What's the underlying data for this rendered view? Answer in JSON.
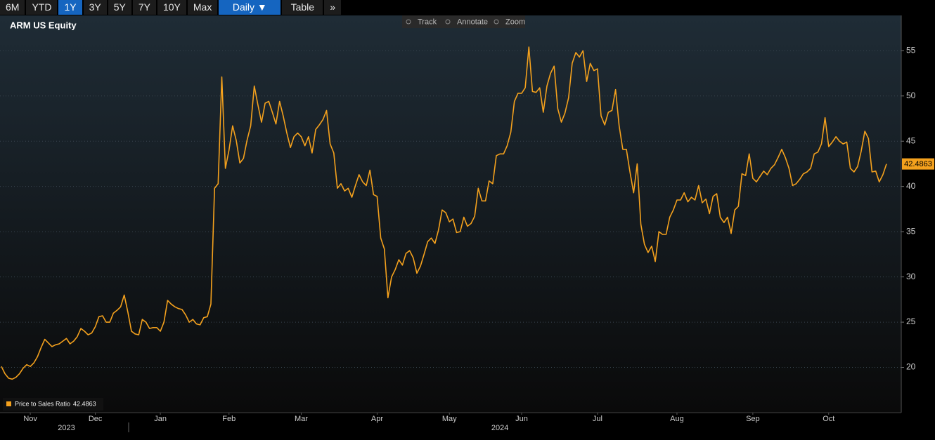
{
  "toolbar": {
    "ranges": [
      "6M",
      "YTD",
      "1Y",
      "3Y",
      "5Y",
      "7Y",
      "10Y",
      "Max"
    ],
    "selected_range": 2,
    "frequency": "Daily ▼",
    "table": "Table",
    "more": "»"
  },
  "chart_tools": [
    "Track",
    "Annotate",
    "Zoom"
  ],
  "chart_data": {
    "type": "line",
    "title": "ARM US Equity",
    "categories": [
      null,
      null,
      null,
      null,
      null,
      null,
      null,
      null,
      null,
      null,
      null,
      null,
      null,
      null,
      null,
      null,
      null,
      null,
      null,
      null,
      null,
      null,
      null,
      null,
      null,
      null,
      null,
      null,
      null,
      null,
      null,
      null,
      null,
      null,
      null,
      null,
      null,
      null,
      null,
      null,
      null,
      null,
      null,
      null,
      null,
      null,
      null,
      null,
      null,
      null,
      null,
      null,
      null,
      null,
      null,
      null,
      null,
      null,
      null,
      null,
      null,
      null,
      null,
      null,
      null,
      null,
      null,
      null,
      null,
      null,
      null,
      null,
      null,
      null,
      null,
      null,
      null,
      null,
      null,
      null,
      null,
      null,
      null,
      null,
      null,
      null,
      null,
      null,
      null,
      null,
      null,
      null,
      null,
      null,
      null,
      null,
      null,
      null,
      null,
      null,
      null,
      null,
      null,
      null,
      null,
      null,
      null,
      null,
      null,
      null,
      null,
      null,
      null,
      null,
      null,
      null,
      null,
      null,
      null,
      null,
      null,
      null,
      null,
      null,
      null,
      null,
      null,
      null,
      null,
      null,
      null,
      null,
      null,
      null,
      null,
      null,
      null,
      null,
      null,
      null,
      null,
      null,
      null,
      null,
      null,
      null,
      null,
      null,
      null,
      null,
      null,
      null,
      null,
      null,
      null,
      null,
      null,
      null,
      null,
      null,
      null,
      null,
      null,
      null,
      null,
      null,
      null,
      null,
      null,
      null,
      null,
      null,
      null,
      null,
      null,
      null,
      null,
      null,
      null,
      null,
      null,
      null,
      null,
      null,
      null,
      null,
      null,
      null,
      null,
      null,
      null,
      null,
      null,
      null,
      null,
      null,
      null,
      null,
      null,
      null,
      null,
      null,
      null,
      null,
      null,
      null,
      null,
      null,
      null,
      null,
      null,
      null,
      null,
      null,
      null,
      null,
      null,
      null,
      null,
      null,
      null,
      null,
      null,
      null,
      null,
      null,
      null,
      null,
      null,
      null,
      null,
      null,
      null,
      null,
      null,
      null,
      null,
      null,
      null,
      null,
      null,
      null,
      null,
      null,
      null,
      null
    ],
    "series": [
      {
        "name": "Price to Sales Ratio",
        "color": "#f4a11d",
        "values": [
          20.1,
          19.3,
          18.8,
          18.7,
          18.9,
          19.3,
          19.9,
          20.3,
          20.1,
          20.5,
          21.2,
          22.2,
          23.1,
          22.7,
          22.3,
          22.5,
          22.6,
          22.9,
          23.2,
          22.6,
          22.9,
          23.4,
          24.3,
          24.0,
          23.6,
          23.8,
          24.5,
          25.6,
          25.7,
          25.0,
          25.0,
          26.0,
          26.3,
          26.7,
          28.0,
          26.1,
          24.0,
          23.7,
          23.6,
          25.3,
          25.0,
          24.3,
          24.4,
          24.4,
          24.0,
          25.0,
          27.4,
          27.0,
          26.7,
          26.5,
          26.4,
          25.8,
          25.0,
          25.3,
          24.8,
          24.7,
          25.5,
          25.6,
          27.0,
          39.8,
          40.3,
          52.1,
          42.0,
          44.0,
          46.7,
          45.1,
          42.6,
          43.1,
          45.1,
          46.7,
          51.1,
          49.0,
          47.1,
          49.2,
          49.4,
          48.2,
          46.9,
          49.4,
          47.8,
          45.9,
          44.3,
          45.5,
          45.9,
          45.5,
          44.5,
          45.5,
          43.7,
          46.3,
          46.8,
          47.4,
          48.4,
          44.7,
          43.7,
          39.8,
          40.3,
          39.5,
          39.8,
          38.8,
          40.1,
          41.3,
          40.5,
          40.1,
          41.8,
          39.1,
          38.9,
          34.3,
          33.1,
          27.7,
          30.0,
          30.8,
          31.9,
          31.3,
          32.6,
          32.9,
          32.1,
          30.4,
          31.2,
          32.5,
          33.9,
          34.3,
          33.7,
          35.2,
          37.4,
          37.1,
          36.1,
          36.4,
          34.9,
          35.0,
          36.6,
          35.6,
          35.9,
          36.7,
          39.8,
          38.4,
          38.4,
          40.6,
          40.3,
          43.4,
          43.6,
          43.6,
          44.5,
          46.0,
          49.4,
          50.3,
          50.3,
          50.9,
          55.4,
          50.5,
          50.4,
          50.9,
          48.2,
          51.1,
          52.5,
          53.3,
          48.6,
          47.1,
          48.1,
          49.8,
          53.6,
          54.8,
          54.3,
          55.0,
          51.6,
          53.6,
          52.8,
          53.0,
          47.8,
          46.8,
          48.2,
          48.4,
          50.7,
          46.7,
          44.1,
          44.1,
          41.6,
          39.3,
          42.5,
          35.8,
          33.6,
          32.7,
          33.4,
          31.7,
          35.0,
          34.7,
          34.7,
          36.6,
          37.4,
          38.5,
          38.5,
          39.3,
          38.3,
          38.8,
          38.5,
          40.1,
          38.2,
          38.6,
          37.0,
          38.9,
          39.2,
          36.6,
          36.0,
          36.6,
          34.8,
          37.4,
          37.8,
          41.4,
          41.2,
          43.6,
          40.9,
          40.5,
          41.1,
          41.7,
          41.3,
          42.0,
          42.4,
          43.2,
          44.1,
          43.2,
          42.0,
          40.1,
          40.3,
          40.8,
          41.4,
          41.6,
          42.0,
          43.6,
          43.8,
          44.7,
          47.6,
          44.4,
          44.9,
          45.5,
          45.0,
          44.7,
          44.9,
          42.0,
          41.6,
          42.2,
          43.9,
          46.1,
          45.3,
          41.6,
          41.7,
          40.5,
          41.3,
          42.4863
        ]
      }
    ],
    "ylim": [
      15,
      58.9
    ],
    "yticks": [
      20,
      25,
      30,
      35,
      40,
      45,
      50,
      55
    ],
    "xticks": [
      {
        "value": 8,
        "label": "Nov"
      },
      {
        "value": 26,
        "label": "Dec"
      },
      {
        "value": 44,
        "label": "Jan"
      },
      {
        "value": 63,
        "label": "Feb"
      },
      {
        "value": 83,
        "label": "Mar"
      },
      {
        "value": 104,
        "label": "Apr"
      },
      {
        "value": 124,
        "label": "May"
      },
      {
        "value": 144,
        "label": "Jun"
      },
      {
        "value": 165,
        "label": "Jul"
      },
      {
        "value": 187,
        "label": "Aug"
      },
      {
        "value": 208,
        "label": "Sep"
      },
      {
        "value": 229,
        "label": "Oct"
      }
    ],
    "x_year_labels": [
      {
        "value": 18,
        "label": "2023"
      },
      {
        "value": 138,
        "label": "2024"
      }
    ],
    "grid": true
  }
}
